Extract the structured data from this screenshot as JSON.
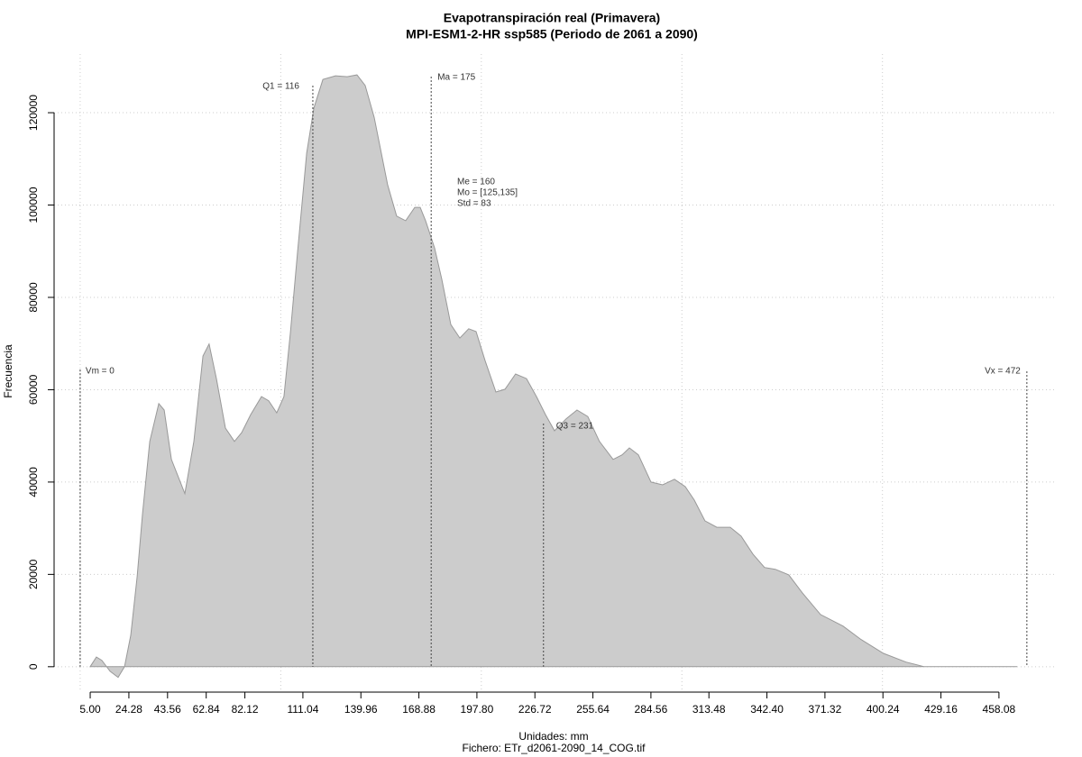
{
  "chart_data": {
    "type": "area",
    "title": "Evapotranspiración real (Primavera)",
    "subtitle": "MPI-ESM1-2-HR ssp585 (Periodo de 2061 a 2090)",
    "xlabel": "Unidades: mm",
    "caption": "Fichero: ETr_d2061-2090_14_COG.tif",
    "ylabel": "Frecuencia",
    "color": "#cccccc",
    "line_color": "#999999",
    "grid": true,
    "xlim": [
      -13,
      486
    ],
    "ylim": [
      -5500,
      132700
    ],
    "xticks": [
      {
        "value": 5,
        "label": "5.00"
      },
      24.28,
      43.56,
      62.84,
      82.12,
      111.04,
      139.96,
      168.88,
      {
        "value": 197.8,
        "label": "197.80"
      },
      226.72,
      255.64,
      284.56,
      313.48,
      {
        "value": 342.4,
        "label": "342.40"
      },
      371.32,
      400.24,
      429.16,
      458.08
    ],
    "xgrid": [
      0,
      100,
      200,
      300,
      400
    ],
    "yticks": [
      0,
      20000,
      40000,
      60000,
      80000,
      100000,
      120000
    ],
    "x": [
      5,
      8.1,
      10.8,
      14.9,
      18.9,
      22.1,
      25.2,
      28.4,
      31.1,
      34.7,
      39.2,
      41.9,
      45.5,
      52.2,
      56.7,
      61.2,
      64.3,
      67.9,
      72.4,
      76.9,
      80.5,
      85,
      90.4,
      94,
      98,
      101.6,
      104.8,
      108.4,
      112.9,
      116.5,
      121,
      127.3,
      133.1,
      138,
      142.1,
      146.6,
      153.3,
      157.8,
      162.3,
      166.8,
      169.5,
      172.2,
      176.7,
      180.3,
      184.8,
      189.3,
      193.7,
      197.4,
      201.9,
      207.3,
      211.8,
      217.1,
      222.5,
      227.5,
      232,
      236.5,
      242.3,
      247.7,
      253.1,
      258.9,
      265.7,
      270.2,
      273.8,
      278.3,
      284.6,
      290.4,
      296.3,
      301.7,
      306.2,
      311.5,
      317.4,
      324.1,
      329.5,
      335.4,
      341.2,
      346.6,
      353.3,
      360.1,
      369.1,
      380.3,
      389.3,
      400.5,
      411.8,
      420.8,
      467.1
    ],
    "values": [
      0,
      2100,
      1400,
      -1000,
      -2300,
      0,
      6800,
      19500,
      33200,
      48800,
      57000,
      55600,
      44900,
      37500,
      48800,
      67300,
      69900,
      62400,
      51700,
      48800,
      50700,
      54600,
      58500,
      57600,
      55000,
      58500,
      72200,
      89800,
      111200,
      121000,
      127200,
      128000,
      127800,
      128200,
      125900,
      119000,
      104400,
      97600,
      96600,
      99500,
      99500,
      96600,
      90700,
      83900,
      74100,
      71200,
      73200,
      72600,
      66300,
      59500,
      60100,
      63400,
      62400,
      58500,
      54600,
      51100,
      53700,
      55600,
      54200,
      48800,
      44900,
      45900,
      47400,
      45900,
      40000,
      39400,
      40600,
      39000,
      36100,
      31600,
      30200,
      30200,
      28300,
      24400,
      21500,
      21100,
      19900,
      16000,
      11300,
      8800,
      5900,
      2900,
      1000,
      0,
      0
    ],
    "markers": [
      {
        "label": "Vm = 0",
        "x": 0
      },
      {
        "label": "Q1 = 116",
        "x": 116
      },
      {
        "label": "Ma = 175",
        "x": 175
      },
      {
        "label": "Q3 = 231",
        "x": 231
      },
      {
        "label": "Vx = 472",
        "x": 472
      }
    ],
    "stats": [
      "Me = 160",
      "Mo = [125,135]",
      "Std = 83"
    ]
  }
}
